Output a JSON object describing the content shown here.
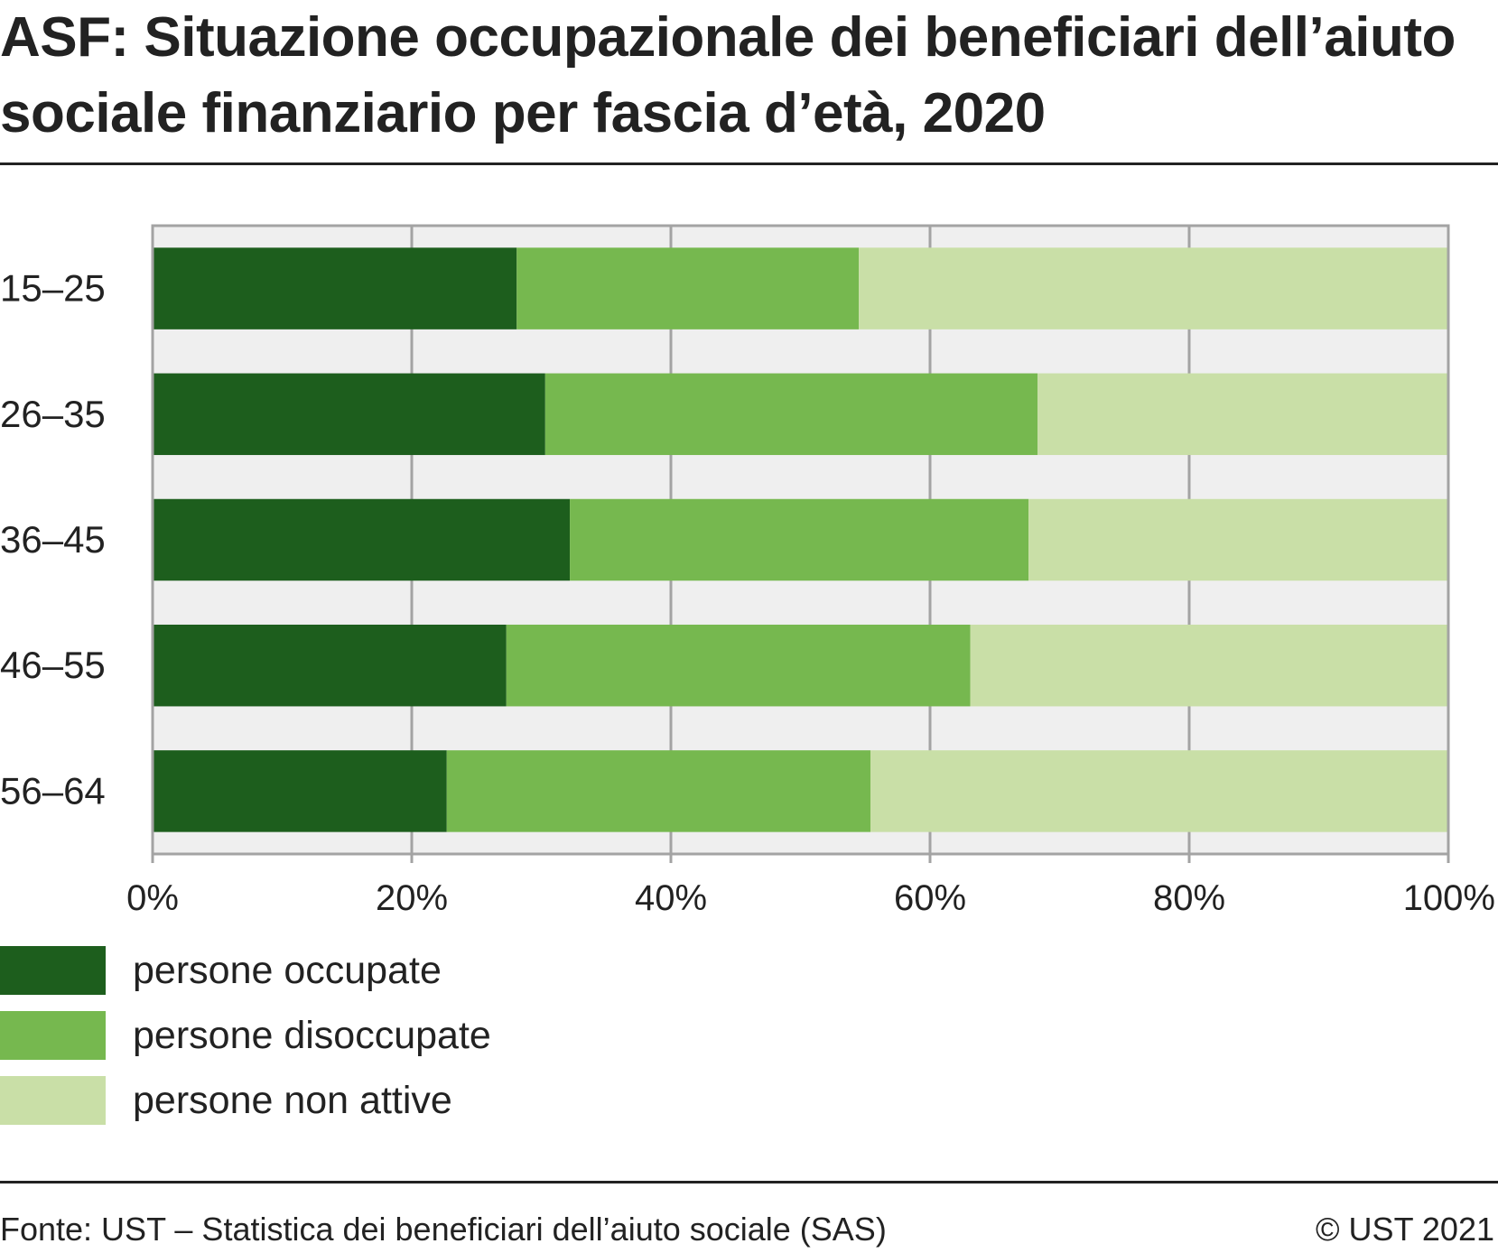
{
  "title": "ASF: Situazione occupazionale dei beneficiari dell’aiuto sociale finanziario per fascia d’età, 2020",
  "source": "Fonte: UST – Statistica dei beneficiari dell’aiuto sociale (SAS)",
  "copyright": "© UST 2021",
  "colors": {
    "persone_occupate": "#1d5e1d",
    "persone_disoccupate": "#76b84f",
    "persone_non_attive": "#c9dfa7",
    "plot_background": "#efefef",
    "grid": "#a3a3a3",
    "text": "#222222"
  },
  "legend": [
    {
      "label": "persone occupate",
      "color": "#1d5e1d"
    },
    {
      "label": "persone disoccupate",
      "color": "#76b84f"
    },
    {
      "label": "persone non attive",
      "color": "#c9dfa7"
    }
  ],
  "chart_data": {
    "type": "bar",
    "orientation": "horizontal",
    "stacked": true,
    "categories": [
      "15–25",
      "26–35",
      "36–45",
      "46–55",
      "56–64"
    ],
    "series": [
      {
        "name": "persone occupate",
        "color": "#1d5e1d",
        "values": [
          28.1,
          30.3,
          32.2,
          27.3,
          22.7
        ]
      },
      {
        "name": "persone disoccupate",
        "color": "#76b84f",
        "values": [
          26.4,
          38.0,
          35.4,
          35.8,
          32.7
        ]
      },
      {
        "name": "persone non attive",
        "color": "#c9dfa7",
        "values": [
          45.5,
          31.7,
          32.4,
          36.9,
          44.6
        ]
      }
    ],
    "x_ticks": [
      "0%",
      "20%",
      "40%",
      "60%",
      "80%",
      "100%"
    ],
    "xlim": [
      0,
      100
    ],
    "grid": true,
    "legend_position": "bottom-left"
  }
}
